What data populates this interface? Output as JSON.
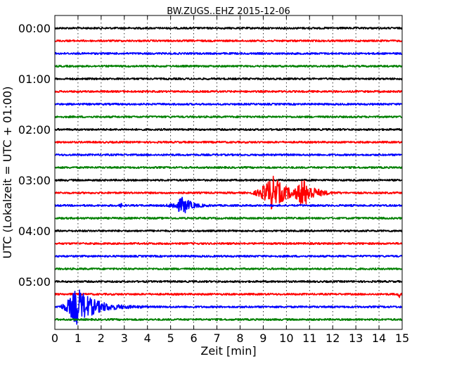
{
  "chart_data": {
    "type": "line",
    "title": "BW.ZUGS..EHZ 2015-12-06",
    "xlabel": "Zeit  [min]",
    "ylabel": "UTC (Lokalzeit = UTC + 01:00)",
    "xlim": [
      0,
      15
    ],
    "xticks": [
      0,
      1,
      2,
      3,
      4,
      5,
      6,
      7,
      8,
      9,
      10,
      11,
      12,
      13,
      14,
      15
    ],
    "yticks": [
      "00:00",
      "01:00",
      "02:00",
      "03:00",
      "04:00",
      "05:00"
    ],
    "grid": true,
    "row_interval_minutes": 15,
    "colors": [
      "#000000",
      "#ff0000",
      "#0000ff",
      "#008000"
    ],
    "rows": [
      {
        "start": "00:00",
        "color": "#000000"
      },
      {
        "start": "00:15",
        "color": "#ff0000"
      },
      {
        "start": "00:30",
        "color": "#0000ff"
      },
      {
        "start": "00:45",
        "color": "#008000"
      },
      {
        "start": "01:00",
        "color": "#000000"
      },
      {
        "start": "01:15",
        "color": "#ff0000"
      },
      {
        "start": "01:30",
        "color": "#0000ff"
      },
      {
        "start": "01:45",
        "color": "#008000"
      },
      {
        "start": "02:00",
        "color": "#000000"
      },
      {
        "start": "02:15",
        "color": "#ff0000"
      },
      {
        "start": "02:30",
        "color": "#0000ff"
      },
      {
        "start": "02:45",
        "color": "#008000"
      },
      {
        "start": "03:00",
        "color": "#000000"
      },
      {
        "start": "03:15",
        "color": "#ff0000",
        "events": [
          {
            "start": 8.3,
            "peak": 9.4,
            "end": 11.8,
            "amplitude": 3.2
          },
          {
            "start": 10.2,
            "peak": 10.7,
            "end": 12.4,
            "amplitude": 2.6
          }
        ]
      },
      {
        "start": "03:30",
        "color": "#0000ff",
        "events": [
          {
            "start": 4.6,
            "peak": 5.55,
            "end": 6.9,
            "amplitude": 1.6
          },
          {
            "start": 2.7,
            "peak": 2.9,
            "end": 3.1,
            "amplitude": 0.4
          }
        ]
      },
      {
        "start": "03:45",
        "color": "#008000"
      },
      {
        "start": "04:00",
        "color": "#000000"
      },
      {
        "start": "04:15",
        "color": "#ff0000"
      },
      {
        "start": "04:30",
        "color": "#0000ff"
      },
      {
        "start": "04:45",
        "color": "#008000"
      },
      {
        "start": "05:00",
        "color": "#000000"
      },
      {
        "start": "05:15",
        "color": "#ff0000",
        "events": [
          {
            "start": 14.7,
            "peak": 14.9,
            "end": 15.0,
            "amplitude": 0.6
          }
        ]
      },
      {
        "start": "05:30",
        "color": "#0000ff",
        "events": [
          {
            "start": 0.0,
            "peak": 0.95,
            "end": 4.0,
            "amplitude": 3.6
          }
        ]
      },
      {
        "start": "05:45",
        "color": "#008000"
      }
    ]
  }
}
